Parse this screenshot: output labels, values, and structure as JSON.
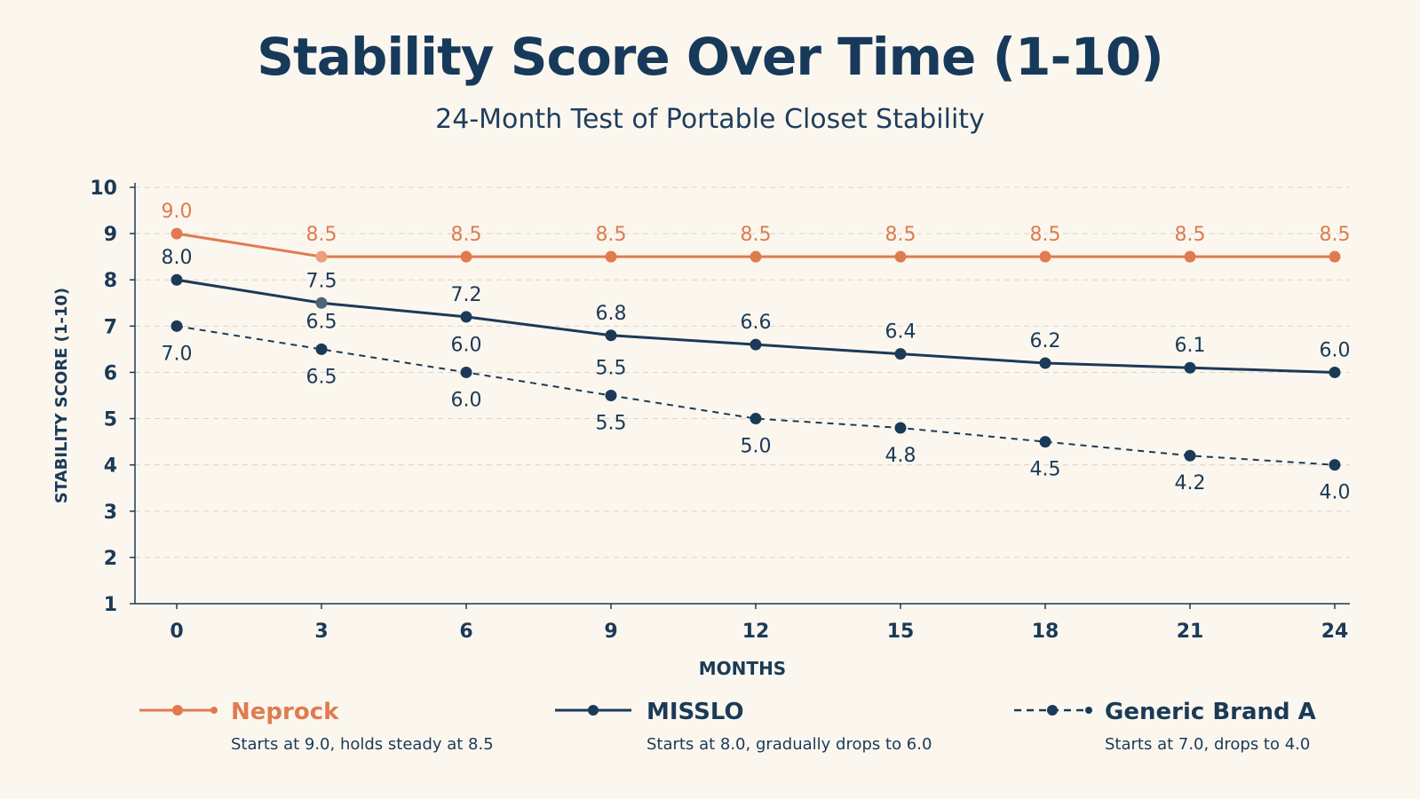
{
  "chart_data": {
    "type": "line",
    "title": "Stability Score Over Time (1-10)",
    "subtitle": "24-Month Test of Portable Closet Stability",
    "xlabel": "MONTHS",
    "ylabel": "STABILITY SCORE (1-10)",
    "x": [
      0,
      3,
      6,
      9,
      12,
      15,
      18,
      21,
      24
    ],
    "ylim": [
      1,
      10
    ],
    "yticks": [
      1,
      2,
      3,
      4,
      5,
      6,
      7,
      8,
      9,
      10
    ],
    "grid": true,
    "legend_placement": "bottom",
    "series": [
      {
        "name": "Neprock",
        "description": "Starts at 9.0, holds steady at 8.5",
        "color": "#e07b4f",
        "style": "solid",
        "values": [
          9.0,
          8.5,
          8.5,
          8.5,
          8.5,
          8.5,
          8.5,
          8.5,
          8.5
        ],
        "labels": [
          "9.0",
          "8.5",
          "8.5",
          "8.5",
          "8.5",
          "8.5",
          "8.5",
          "8.5",
          "8.5"
        ]
      },
      {
        "name": "MISSLO",
        "description": "Starts at 8.0, gradually drops to 6.0",
        "color": "#1b3a57",
        "style": "solid",
        "values": [
          8.0,
          7.5,
          7.2,
          6.8,
          6.6,
          6.4,
          6.2,
          6.1,
          6.0
        ],
        "labels": [
          "8.0",
          "7.5",
          "7.2",
          "6.8",
          "6.6",
          "6.4",
          "6.2",
          "6.1",
          "6.0"
        ]
      },
      {
        "name": "Generic Brand A",
        "description": "Starts at 7.0, drops to 4.0",
        "color": "#1b3a57",
        "style": "dashed",
        "values": [
          7.0,
          6.5,
          6.0,
          5.5,
          5.0,
          4.8,
          4.5,
          4.2,
          4.0
        ],
        "labels": [
          "7.0",
          "6.5",
          "6.0",
          "5.5",
          "5.0",
          "4.8",
          "4.5",
          "4.2",
          "4.0"
        ],
        "upper_labels": [
          "",
          "6.5",
          "6.0",
          "5.5",
          "",
          "",
          "",
          "",
          ""
        ]
      }
    ]
  }
}
